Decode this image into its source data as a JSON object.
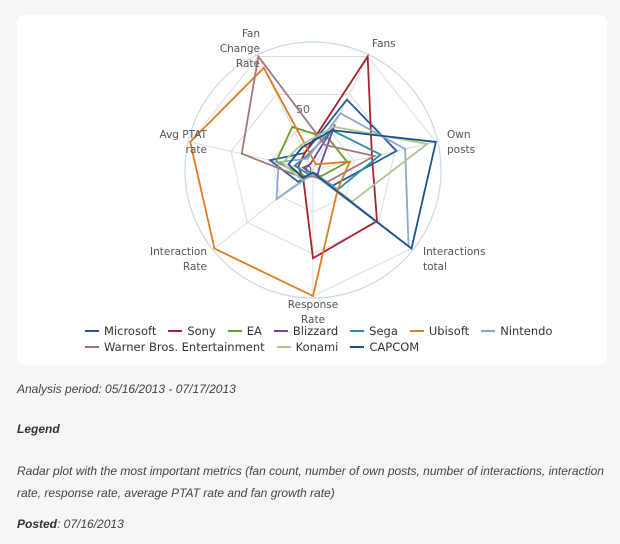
{
  "chart_data": {
    "type": "radar",
    "title": "",
    "axes": [
      "Fans",
      "Own posts",
      "Interactions total",
      "Response Rate",
      "Interaction Rate",
      "Avg PTAT rate",
      "Fan Change Rate"
    ],
    "axis_labels_display": [
      "Fans",
      "Own\nposts",
      "Interactions\ntotal",
      "Response\nRate",
      "Interaction\nRate",
      "Avg PTAT\nrate",
      "Fan\nChange\nRate"
    ],
    "radial_ticks": [
      "0",
      "50"
    ],
    "range": [
      0,
      100
    ],
    "series": [
      {
        "name": "Microsoft",
        "color": "#2a5c9a",
        "values": [
          62,
          68,
          20,
          3,
          15,
          35,
          15
        ]
      },
      {
        "name": "Sony",
        "color": "#a8232b",
        "values": [
          100,
          48,
          65,
          70,
          10,
          12,
          15
        ]
      },
      {
        "name": "EA",
        "color": "#6c9e2e",
        "values": [
          28,
          28,
          8,
          3,
          8,
          30,
          38
        ]
      },
      {
        "name": "Blizzard",
        "color": "#6a4b9b",
        "values": [
          40,
          5,
          5,
          3,
          3,
          8,
          5
        ]
      },
      {
        "name": "Sega",
        "color": "#2b8fa3",
        "values": [
          35,
          55,
          25,
          2,
          5,
          15,
          12
        ]
      },
      {
        "name": "Ubisoft",
        "color": "#e07b20",
        "values": [
          5,
          30,
          25,
          100,
          100,
          100,
          90
        ]
      },
      {
        "name": "Nintendo",
        "color": "#8aa8d0",
        "values": [
          50,
          75,
          97,
          3,
          37,
          28,
          10
        ]
      },
      {
        "name": "Warner Bros. Entertainment",
        "color": "#a3787a",
        "values": [
          22,
          50,
          15,
          5,
          10,
          58,
          100
        ]
      },
      {
        "name": "Konami",
        "color": "#a8c98a",
        "values": [
          38,
          93,
          40,
          2,
          12,
          25,
          22
        ]
      },
      {
        "name": "CAPCOM",
        "color": "#1f4f8f",
        "values": [
          35,
          100,
          100,
          2,
          10,
          20,
          20
        ]
      }
    ],
    "legend_position": "bottom",
    "grid": true
  },
  "legend": {
    "row1": [
      "Microsoft",
      "Sony",
      "EA",
      "Blizzard",
      "Sega",
      "Ubisoft",
      "Nintendo"
    ],
    "row2": [
      "Warner Bros. Entertainment",
      "Konami",
      "CAPCOM"
    ]
  },
  "text": {
    "analysis_period": "Analysis period: 05/16/2013 - 07/17/2013",
    "legend_heading": "Legend",
    "description": "Radar plot with the most important metrics (fan count, number of own posts, number of interactions, interaction rate, response rate, average PTAT rate and fan growth rate)",
    "posted_label": "Posted",
    "posted_date": ": 07/16/2013"
  }
}
